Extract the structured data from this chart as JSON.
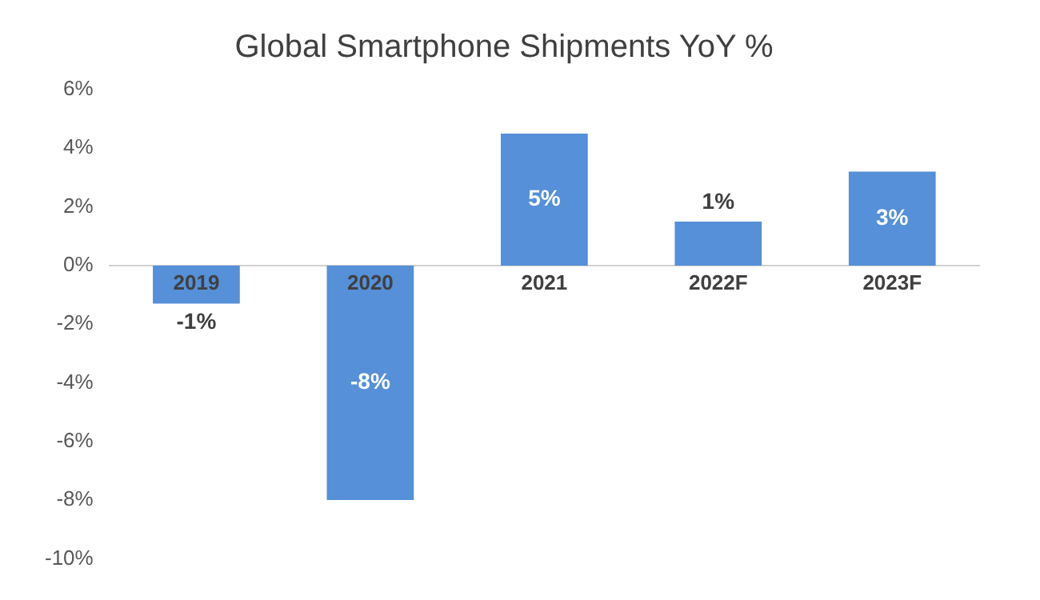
{
  "chart_data": {
    "type": "bar",
    "title": "Global Smartphone Shipments YoY %",
    "categories": [
      "2019",
      "2020",
      "2021",
      "2022F",
      "2023F"
    ],
    "values": [
      -1.3,
      -8.0,
      4.5,
      1.5,
      3.2
    ],
    "value_labels": [
      "-1%",
      "-8%",
      "5%",
      "1%",
      "3%"
    ],
    "color": "#5590d8",
    "ylim": [
      -10,
      6
    ],
    "yticks": [
      {
        "value": -10,
        "label": "-10%"
      },
      {
        "value": -8,
        "label": "-8%"
      },
      {
        "value": -6,
        "label": "-6%"
      },
      {
        "value": -4,
        "label": "-4%"
      },
      {
        "value": -2,
        "label": "-2%"
      },
      {
        "value": 0,
        "label": "0%"
      },
      {
        "value": 2,
        "label": "2%"
      },
      {
        "value": 4,
        "label": "4%"
      },
      {
        "value": 6,
        "label": "6%"
      }
    ],
    "grid": false,
    "legend": false
  }
}
